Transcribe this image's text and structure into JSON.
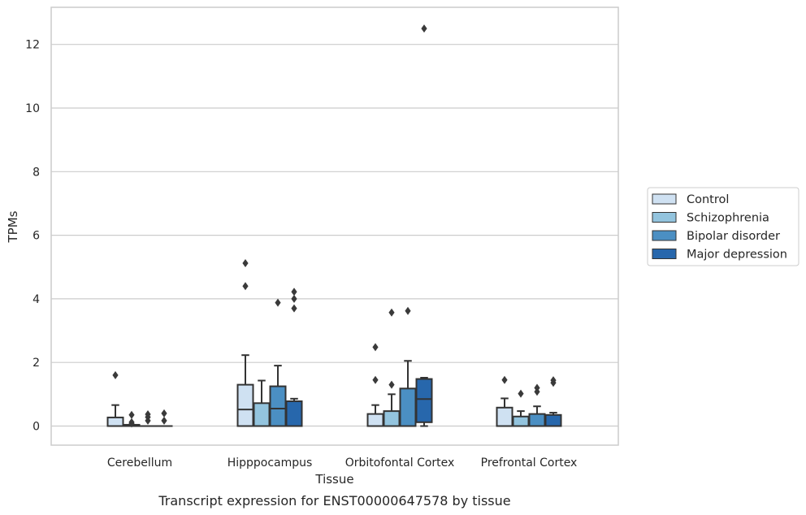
{
  "chart_data": {
    "type": "boxplot",
    "caption": "Transcript expression for ENST00000647578 by tissue",
    "xlabel": "Tissue",
    "ylabel": "TPMs",
    "ylim": [
      -0.6,
      13.1
    ],
    "yticks": [
      0,
      2,
      4,
      6,
      8,
      10,
      12
    ],
    "grid": "horizontal",
    "legend_position": "right-center",
    "categories": [
      "Cerebellum",
      "Hipppocampus",
      "Orbitofontal Cortex",
      "Prefrontal Cortex"
    ],
    "series": [
      {
        "name": "Control",
        "color": "#cfe1f2",
        "boxes": [
          {
            "q1": 0,
            "median": 0,
            "q3": 0.27,
            "whisker_low": 0,
            "whisker_high": 0.66,
            "outliers": [
              1.6
            ]
          },
          {
            "q1": 0,
            "median": 0.52,
            "q3": 1.3,
            "whisker_low": 0,
            "whisker_high": 2.23,
            "outliers": [
              4.4,
              5.12
            ]
          },
          {
            "q1": 0,
            "median": 0,
            "q3": 0.38,
            "whisker_low": 0,
            "whisker_high": 0.66,
            "outliers": [
              1.45,
              2.48
            ]
          },
          {
            "q1": 0,
            "median": 0,
            "q3": 0.58,
            "whisker_low": 0,
            "whisker_high": 0.87,
            "outliers": [
              1.45
            ]
          }
        ]
      },
      {
        "name": "Schizophrenia",
        "color": "#93c4de",
        "boxes": [
          {
            "q1": 0,
            "median": 0,
            "q3": 0.04,
            "whisker_low": 0,
            "whisker_high": 0.04,
            "outliers": [
              0.08,
              0.12,
              0.35
            ]
          },
          {
            "q1": 0,
            "median": 0,
            "q3": 0.72,
            "whisker_low": 0,
            "whisker_high": 1.43,
            "outliers": []
          },
          {
            "q1": 0,
            "median": 0,
            "q3": 0.47,
            "whisker_low": 0,
            "whisker_high": 1.0,
            "outliers": [
              1.3,
              3.57
            ]
          },
          {
            "q1": 0,
            "median": 0,
            "q3": 0.3,
            "whisker_low": 0,
            "whisker_high": 0.47,
            "outliers": [
              1.02
            ]
          }
        ]
      },
      {
        "name": "Bipolar disorder",
        "color": "#4b8fc3",
        "boxes": [
          {
            "q1": 0,
            "median": 0,
            "q3": 0,
            "whisker_low": 0,
            "whisker_high": 0,
            "outliers": [
              0.17,
              0.28,
              0.37
            ]
          },
          {
            "q1": 0,
            "median": 0.55,
            "q3": 1.25,
            "whisker_low": 0,
            "whisker_high": 1.9,
            "outliers": [
              3.88
            ]
          },
          {
            "q1": 0,
            "median": 0,
            "q3": 1.18,
            "whisker_low": 0,
            "whisker_high": 2.05,
            "outliers": [
              3.62
            ]
          },
          {
            "q1": 0,
            "median": 0,
            "q3": 0.38,
            "whisker_low": 0,
            "whisker_high": 0.62,
            "outliers": [
              1.08,
              1.2
            ]
          }
        ]
      },
      {
        "name": "Major depression",
        "color": "#2767ac",
        "boxes": [
          {
            "q1": 0,
            "median": 0,
            "q3": 0,
            "whisker_low": 0,
            "whisker_high": 0,
            "outliers": [
              0.17,
              0.4
            ]
          },
          {
            "q1": 0,
            "median": 0,
            "q3": 0.78,
            "whisker_low": 0,
            "whisker_high": 0.86,
            "outliers": [
              3.7,
              4.0,
              4.22
            ]
          },
          {
            "q1": 0.12,
            "median": 0.85,
            "q3": 1.48,
            "whisker_low": 0,
            "whisker_high": 1.52,
            "outliers": [
              12.5
            ]
          },
          {
            "q1": 0,
            "median": 0,
            "q3": 0.35,
            "whisker_low": 0,
            "whisker_high": 0.42,
            "outliers": [
              1.36,
              1.44
            ]
          }
        ]
      }
    ]
  }
}
